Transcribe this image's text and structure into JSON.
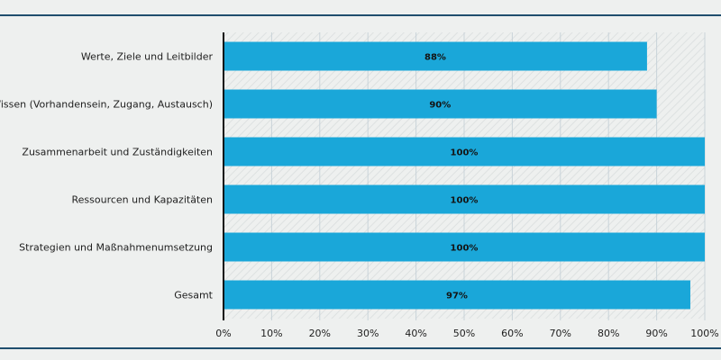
{
  "chart_data": {
    "type": "bar",
    "orientation": "horizontal",
    "categories": [
      "Werte, Ziele und Leitbilder",
      "Wissen (Vorhandensein, Zugang, Austausch)",
      "Zusammenarbeit und Zuständigkeiten",
      "Ressourcen und Kapazitäten",
      "Strategien und Maßnahmenumsetzung",
      "Gesamt"
    ],
    "values": [
      88,
      90,
      100,
      100,
      100,
      97
    ],
    "data_labels": [
      "88%",
      "90%",
      "100%",
      "100%",
      "100%",
      "97%"
    ],
    "xlim": [
      0,
      100
    ],
    "x_ticks": [
      "0%",
      "10%",
      "20%",
      "30%",
      "40%",
      "50%",
      "60%",
      "70%",
      "80%",
      "90%",
      "100%"
    ],
    "grid": true,
    "legend": "none",
    "title": "",
    "xlabel": "",
    "ylabel": ""
  },
  "colors": {
    "bar": "#1aa7d9",
    "axis": "#111111",
    "grid": "#c9d3d9",
    "rule": "#1f4e6e",
    "background": "#eef0ef"
  }
}
